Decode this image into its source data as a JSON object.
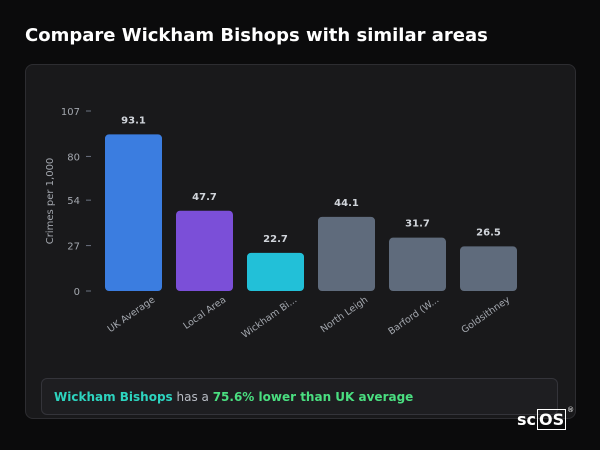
{
  "page": {
    "title": "Compare Wickham Bishops with similar areas"
  },
  "colors": {
    "background": "#0b0b0c",
    "card": "#19191b",
    "uk_average": "#3b7de0",
    "local_area": "#7b4fd8",
    "wickham_bishops": "#22c0d8",
    "other_areas": "#5f6b7c",
    "highlight_place": "#2dd4bf",
    "highlight_stat": "#4ade80"
  },
  "chart_data": {
    "type": "bar",
    "title": "",
    "xlabel": "",
    "ylabel": "Crimes per 1,000",
    "ylim": [
      0,
      107
    ],
    "yticks": [
      0,
      27,
      54,
      80,
      107
    ],
    "grid": false,
    "legend": "none",
    "categories": [
      "UK Average",
      "Local Area",
      "Wickham Bi...",
      "North Leigh",
      "Barford (W...",
      "Goldsithney"
    ],
    "values": [
      93.1,
      47.7,
      22.7,
      44.1,
      31.7,
      26.5
    ],
    "value_labels": [
      "93.1",
      "47.7",
      "22.7",
      "44.1",
      "31.7",
      "26.5"
    ],
    "bar_colors": [
      "#3b7de0",
      "#7b4fd8",
      "#22c0d8",
      "#5f6b7c",
      "#5f6b7c",
      "#5f6b7c"
    ]
  },
  "summary": {
    "place": "Wickham Bishops",
    "middle_text": " has a ",
    "stat": "75.6% lower than UK average"
  },
  "logo": {
    "prefix": "sc",
    "boxed": "OS",
    "mark": "®"
  }
}
